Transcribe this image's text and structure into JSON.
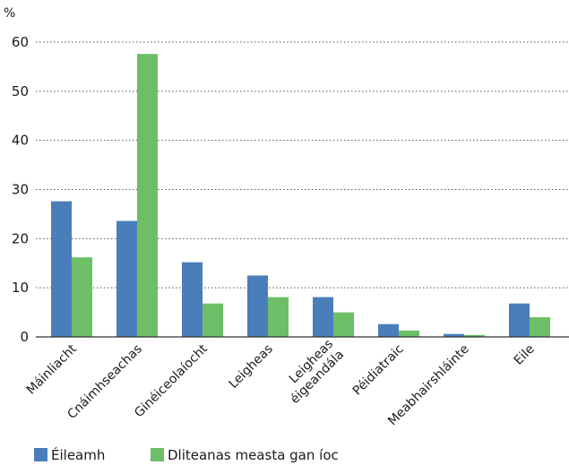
{
  "chart_data": {
    "type": "bar",
    "unit_label": "%",
    "categories": [
      [
        "Máinliacht"
      ],
      [
        "Cnáimhseachas"
      ],
      [
        "Ginéiceolaíocht"
      ],
      [
        "Leigheas"
      ],
      [
        "Leigheas",
        "éigeandála"
      ],
      [
        "Péidiatraic"
      ],
      [
        "Meabhairshláinte"
      ],
      [
        "Eile"
      ]
    ],
    "series": [
      {
        "name": "Éileamh",
        "color": "#4a7ebb",
        "values": [
          27.6,
          23.6,
          15.2,
          12.5,
          8.1,
          2.6,
          0.6,
          6.8
        ]
      },
      {
        "name": "Dliteanas measta gan íoc",
        "color": "#6dbf67",
        "values": [
          16.2,
          57.6,
          6.8,
          8.1,
          5.0,
          1.3,
          0.4,
          4.0
        ]
      }
    ],
    "ylim": [
      0,
      60
    ],
    "yticks": [
      0,
      10,
      20,
      30,
      40,
      50,
      60
    ],
    "grid": true,
    "legend_position": "bottom-left"
  }
}
